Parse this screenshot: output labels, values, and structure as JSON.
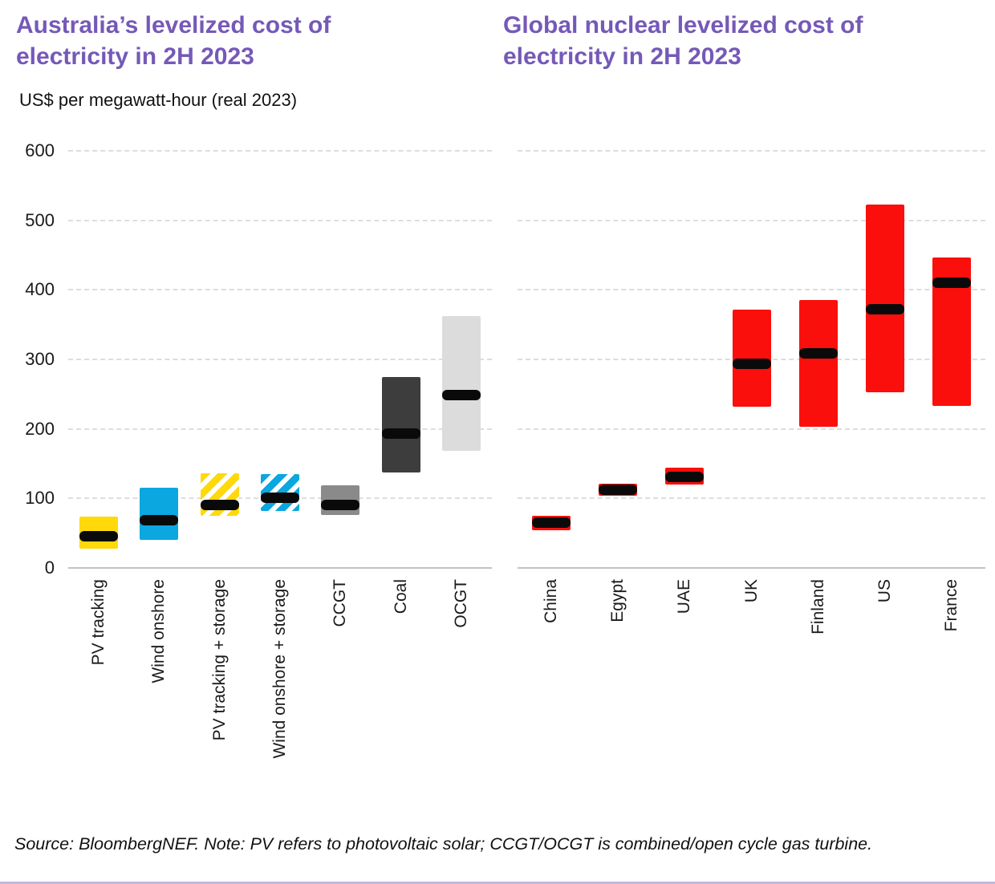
{
  "footer": {
    "source_note": "Source: BloombergNEF. Note: PV refers to photovoltaic solar; CCGT/OCGT is combined/open cycle gas turbine."
  },
  "colors": {
    "title_purple": "#7559b8",
    "median_black": "#0a0a0a",
    "footer_rule_purple": "#c3b6e0",
    "nuclear_red": "#fa0f0c",
    "pv_yellow": "#ffd90a",
    "wind_blue": "#0aa7e0",
    "ccgt_gray": "#8a8a8a",
    "coal_dark_gray": "#3d3d3d",
    "ocgt_light_gray": "#dcdcdc"
  },
  "chart_data": [
    {
      "type": "bar",
      "variant": "floating-range-with-median",
      "title": "Australia’s levelized cost of electricity in 2H 2023",
      "ylabel": "US$ per megawatt-hour (real 2023)",
      "ylim": [
        0,
        600
      ],
      "yticks": [
        0,
        100,
        200,
        300,
        400,
        500,
        600
      ],
      "grid": "horizontal-dashed",
      "legend": "none",
      "categories": [
        "PV tracking",
        "Wind onshore",
        "PV tracking + storage",
        "Wind onshore + storage",
        "CCGT",
        "Coal",
        "OCGT"
      ],
      "series": [
        {
          "name": "PV tracking",
          "low": 28,
          "mid": 45,
          "high": 74,
          "color": "#ffd90a",
          "pattern": "solid"
        },
        {
          "name": "Wind onshore",
          "low": 40,
          "mid": 69,
          "high": 115,
          "color": "#0aa7e0",
          "pattern": "solid"
        },
        {
          "name": "PV tracking + storage",
          "low": 75,
          "mid": 90,
          "high": 136,
          "color": "#ffd90a",
          "pattern": "hatch"
        },
        {
          "name": "Wind onshore + storage",
          "low": 82,
          "mid": 101,
          "high": 135,
          "color": "#0aa7e0",
          "pattern": "hatch"
        },
        {
          "name": "CCGT",
          "low": 76,
          "mid": 90,
          "high": 119,
          "color": "#8a8a8a",
          "pattern": "solid"
        },
        {
          "name": "Coal",
          "low": 137,
          "mid": 193,
          "high": 274,
          "color": "#3d3d3d",
          "pattern": "solid"
        },
        {
          "name": "OCGT",
          "low": 168,
          "mid": 249,
          "high": 362,
          "color": "#dcdcdc",
          "pattern": "solid"
        }
      ]
    },
    {
      "type": "bar",
      "variant": "floating-range-with-median",
      "title": "Global nuclear levelized cost of electricity in 2H 2023",
      "ylabel": "US$ per megawatt-hour (real 2023)",
      "ylim": [
        0,
        600
      ],
      "yticks": [
        0,
        100,
        200,
        300,
        400,
        500,
        600
      ],
      "grid": "horizontal-dashed",
      "legend": "none",
      "categories": [
        "China",
        "Egypt",
        "UAE",
        "UK",
        "Finland",
        "US",
        "France"
      ],
      "series": [
        {
          "name": "China",
          "low": 54,
          "mid": 65,
          "high": 75,
          "color": "#fa0f0c",
          "pattern": "solid"
        },
        {
          "name": "Egypt",
          "low": 104,
          "mid": 112,
          "high": 121,
          "color": "#fa0f0c",
          "pattern": "solid"
        },
        {
          "name": "UAE",
          "low": 120,
          "mid": 131,
          "high": 144,
          "color": "#fa0f0c",
          "pattern": "solid"
        },
        {
          "name": "UK",
          "low": 232,
          "mid": 293,
          "high": 371,
          "color": "#fa0f0c",
          "pattern": "solid"
        },
        {
          "name": "Finland",
          "low": 203,
          "mid": 308,
          "high": 385,
          "color": "#fa0f0c",
          "pattern": "solid"
        },
        {
          "name": "US",
          "low": 253,
          "mid": 372,
          "high": 523,
          "color": "#fa0f0c",
          "pattern": "solid"
        },
        {
          "name": "France",
          "low": 233,
          "mid": 410,
          "high": 446,
          "color": "#fa0f0c",
          "pattern": "solid"
        }
      ]
    }
  ]
}
